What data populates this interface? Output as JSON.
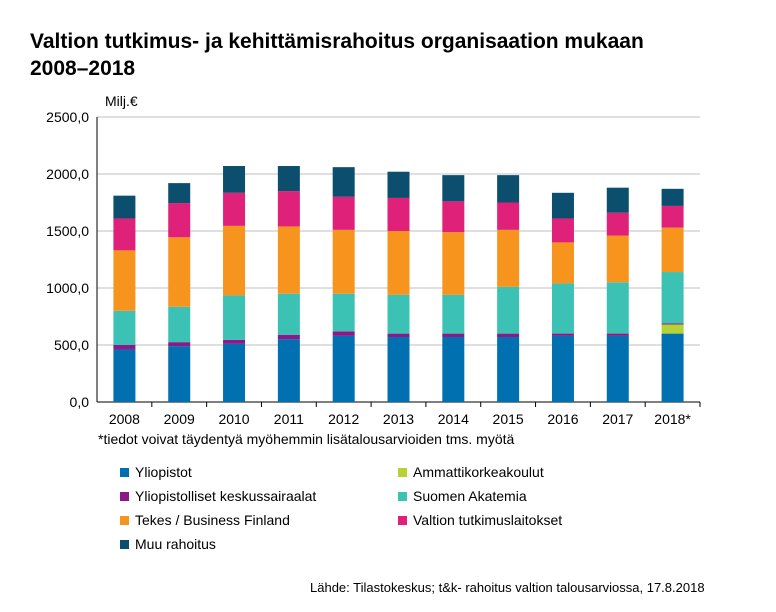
{
  "title_line1": "Valtion tutkimus- ja kehittämisrahoitus organisaation mukaan",
  "title_line2": "2008–2018",
  "note": "*tiedot voivat täydentyä myöhemmin lisätalousarvioiden tms. myötä",
  "source": "Lähde: Tilastokeskus; t&k- rahoitus valtion talousarviossa, 17.8.2018",
  "colors": {
    "Yliopistot": "#0070b0",
    "Ammattikorkeakoulut": "#b5d334",
    "Yliopistolliset keskussairaalat": "#8a1a8a",
    "Suomen Akatemia": "#3cc2b4",
    "Tekes / Business Finland": "#f7941d",
    "Valtion tutkimuslaitokset": "#e0217a",
    "Muu rahoitus": "#0b4e6e"
  },
  "legend_left": [
    "Yliopistot",
    "Yliopistolliset keskussairaalat",
    "Tekes / Business Finland",
    "Muu rahoitus"
  ],
  "legend_right": [
    "Ammattikorkeakoulut",
    "Suomen Akatemia",
    "Valtion tutkimuslaitokset"
  ],
  "chart_data": {
    "type": "bar",
    "stacked": true,
    "ylabel": "Milj.€",
    "ylim": [
      0,
      2500
    ],
    "yticks": [
      "0,0",
      "500,0",
      "1000,0",
      "1500,0",
      "2000,0",
      "2500,0"
    ],
    "categories": [
      "2008",
      "2009",
      "2010",
      "2011",
      "2012",
      "2013",
      "2014",
      "2015",
      "2016",
      "2017",
      "2018*"
    ],
    "series": [
      {
        "name": "Yliopistot",
        "values": [
          460,
          490,
          510,
          550,
          580,
          570,
          570,
          570,
          580,
          580,
          600
        ]
      },
      {
        "name": "Ammattikorkeakoulut",
        "values": [
          0,
          0,
          0,
          0,
          0,
          0,
          0,
          0,
          0,
          0,
          80
        ]
      },
      {
        "name": "Yliopistolliset keskussairaalat",
        "values": [
          40,
          35,
          35,
          40,
          40,
          30,
          30,
          30,
          20,
          20,
          10
        ]
      },
      {
        "name": "Suomen Akatemia",
        "values": [
          300,
          310,
          390,
          360,
          330,
          340,
          340,
          410,
          440,
          450,
          450
        ]
      },
      {
        "name": "Tekes / Business Finland",
        "values": [
          530,
          610,
          610,
          590,
          560,
          560,
          550,
          500,
          360,
          410,
          390
        ]
      },
      {
        "name": "Valtion tutkimuslaitokset",
        "values": [
          280,
          300,
          290,
          310,
          290,
          290,
          270,
          240,
          210,
          200,
          190
        ]
      },
      {
        "name": "Muu rahoitus",
        "values": [
          200,
          175,
          235,
          220,
          260,
          230,
          230,
          240,
          225,
          220,
          150
        ]
      }
    ]
  }
}
